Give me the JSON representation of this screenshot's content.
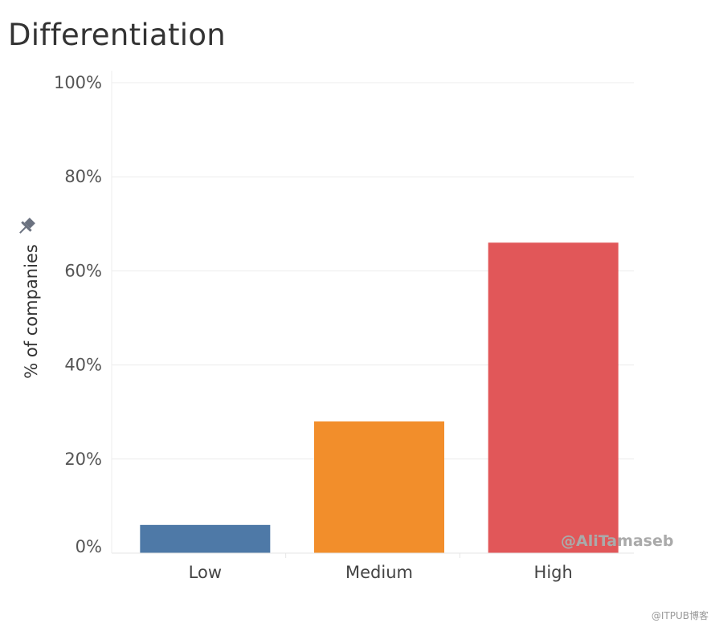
{
  "title": "Differentiation",
  "watermark": "@AliTamaseb",
  "footer": "@ITPUB博客",
  "icons": {
    "pin": "pin-icon"
  },
  "chart_data": {
    "type": "bar",
    "categories": [
      "Low",
      "Medium",
      "High"
    ],
    "values": [
      6,
      28,
      66
    ],
    "colors": [
      "#4e79a7",
      "#f28e2b",
      "#e15759"
    ],
    "ylabel": "% of companies",
    "xlabel": "",
    "ylim": [
      0,
      100
    ],
    "yticks": [
      0,
      20,
      40,
      60,
      80,
      100
    ],
    "ytick_labels": [
      "0%",
      "20%",
      "40%",
      "60%",
      "80%",
      "100%"
    ],
    "grid": true,
    "legend": "none"
  }
}
